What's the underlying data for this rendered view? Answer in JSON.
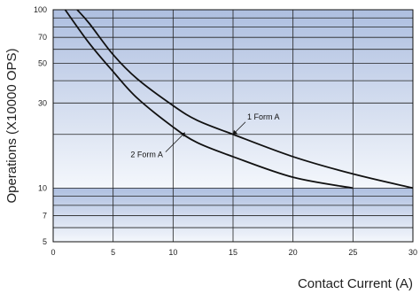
{
  "chart_data": {
    "type": "line",
    "title": "",
    "xlabel": "Contact Current (A)",
    "ylabel": "Operations (X10000 OPS)",
    "xlim": [
      0,
      30
    ],
    "ylim": [
      5,
      100
    ],
    "y_scale": "log",
    "x_ticks": [
      "0",
      "5",
      "10",
      "15",
      "20",
      "25",
      "30"
    ],
    "y_ticks": [
      "5",
      "7",
      "10",
      "30",
      "50",
      "70",
      "100"
    ],
    "grid": true,
    "background": "blue gradient bands per decade",
    "series": [
      {
        "name": "1 Form A",
        "x": [
          2,
          3,
          5,
          7,
          10,
          12,
          15,
          20,
          25,
          30
        ],
        "y": [
          100,
          84,
          56,
          41,
          29,
          24,
          20,
          15,
          12,
          10
        ]
      },
      {
        "name": "2 Form A",
        "x": [
          1,
          3,
          5,
          7,
          10,
          12,
          15,
          20,
          25
        ],
        "y": [
          100,
          65,
          45,
          32,
          22,
          18,
          15,
          11.5,
          10
        ]
      }
    ],
    "annotations": [
      {
        "text": "1 Form A",
        "series": "1 Form A",
        "x": 15,
        "y": 20
      },
      {
        "text": "2 Form A",
        "series": "2 Form A",
        "x": 11,
        "y": 20.5
      }
    ],
    "colors": {
      "line": "#111111",
      "grid": "#222222",
      "band_dark": "#aebfe0",
      "band_light": "#f4f7fc"
    }
  }
}
